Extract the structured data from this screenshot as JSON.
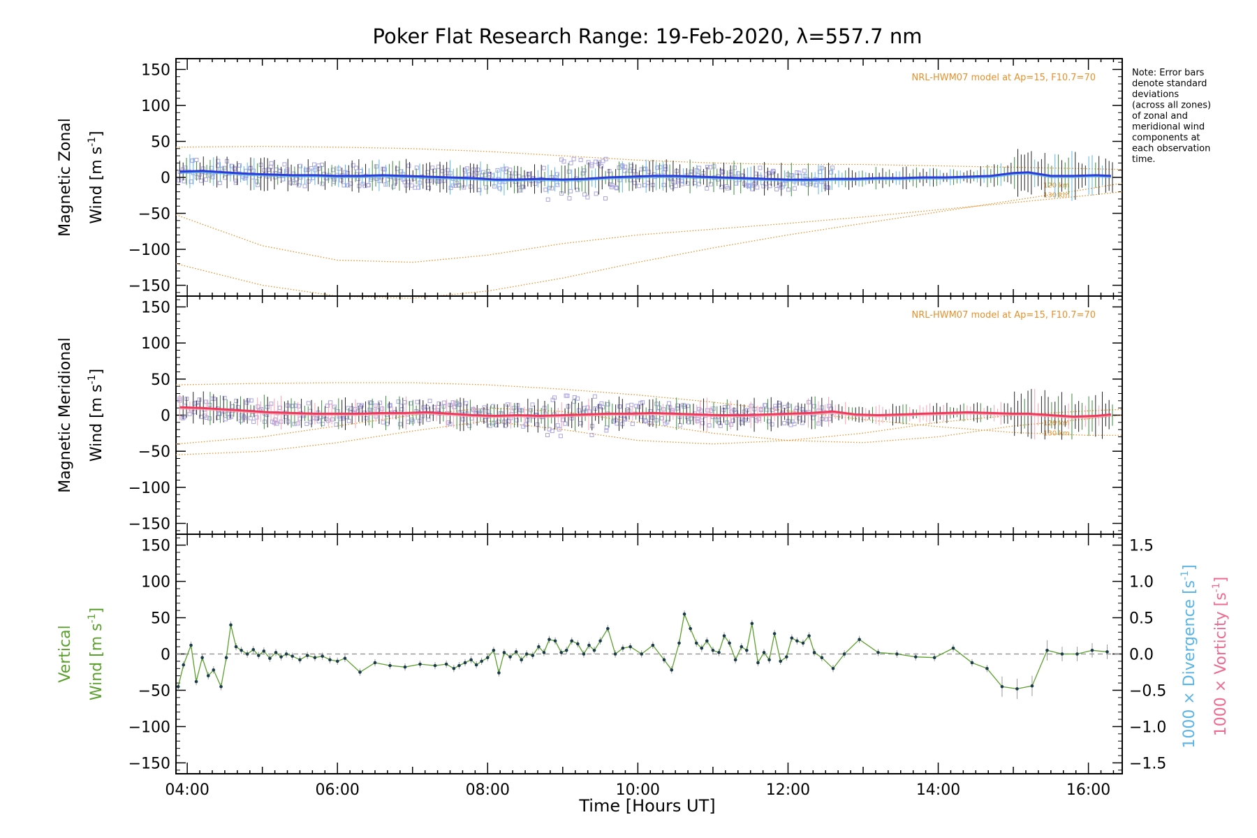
{
  "chart_data": {
    "type": "line",
    "title": "Poker Flat Research Range: 19-Feb-2020, λ=557.7 nm",
    "xlabel": "Time [Hours UT]",
    "x_ticks": [
      "04:00",
      "06:00",
      "08:00",
      "10:00",
      "12:00",
      "14:00",
      "16:00"
    ],
    "xlim_hours": [
      3.85,
      16.45
    ],
    "y_ticks": [
      150,
      100,
      50,
      0,
      -50,
      -100,
      -150
    ],
    "ylim": [
      -165,
      165
    ],
    "note": [
      "Note: Error bars",
      "denote standard",
      "deviations",
      "(across all zones)",
      "of zonal and",
      "meridional wind",
      "components at",
      "each observation",
      "time."
    ],
    "colors": {
      "zonal": "#2b3bd9",
      "zonal_light": "#5ab4e6",
      "meridional": "#f0395a",
      "meridional_light": "#f7a0b0",
      "vertical": "#5aa02c",
      "model": "#e8902a",
      "scatter": "#a9a3e0",
      "divergence_label": "#5ab4e6",
      "vorticity_label": "#f06a8f",
      "points": "#1a3a4a"
    },
    "panels": [
      {
        "name": "zonal",
        "ylabel_line1": "Magnetic Zonal",
        "ylabel_line2": "Wind [m s",
        "ylabel_sup": "-1",
        "ylabel_close": "]",
        "model_label": "NRL-HWM07 model at Ap=15, F10.7=70",
        "alt_labels": [
          "120 km",
          "130 km"
        ],
        "series": [
          {
            "name": "Zonal wind",
            "x": [
              3.9,
              4.2,
              4.5,
              4.8,
              5.1,
              5.4,
              5.7,
              6.0,
              6.3,
              6.6,
              6.9,
              7.2,
              7.5,
              7.8,
              8.1,
              8.4,
              8.7,
              9.0,
              9.3,
              9.6,
              9.9,
              10.2,
              10.5,
              10.8,
              11.1,
              11.4,
              11.7,
              12.0,
              12.3,
              12.6,
              12.9,
              13.2,
              13.5,
              13.8,
              14.1,
              14.4,
              14.7,
              15.0,
              15.2,
              15.5,
              15.8,
              16.1,
              16.3
            ],
            "y": [
              8,
              9,
              7,
              5,
              4,
              3,
              3,
              2,
              2,
              3,
              2,
              1,
              0,
              -1,
              -3,
              -3,
              -2,
              -3,
              -2,
              0,
              1,
              2,
              2,
              1,
              0,
              -1,
              -2,
              -3,
              -3,
              -2,
              -2,
              -1,
              -1,
              0,
              0,
              1,
              2,
              6,
              7,
              2,
              2,
              3,
              2
            ]
          }
        ],
        "model_curves": [
          {
            "x": [
              3.85,
              5,
              6,
              7,
              8,
              9,
              10,
              11,
              12,
              13,
              14,
              15,
              16,
              16.45
            ],
            "y": [
              42,
              43,
              42,
              40,
              36,
              30,
              24,
              20,
              18,
              18,
              16,
              14,
              12,
              11
            ]
          },
          {
            "x": [
              3.85,
              5,
              6,
              7,
              8,
              9,
              10,
              11,
              12,
              13,
              14,
              15,
              16,
              16.45
            ],
            "y": [
              -52,
              -95,
              -115,
              -118,
              -108,
              -92,
              -80,
              -72,
              -64,
              -55,
              -45,
              -35,
              -25,
              -20
            ]
          },
          {
            "x": [
              3.85,
              5,
              6,
              7,
              8,
              9,
              10,
              11,
              12,
              13,
              14,
              15,
              16,
              16.45
            ],
            "y": [
              -120,
              -150,
              -165,
              -168,
              -158,
              -140,
              -118,
              -98,
              -80,
              -64,
              -48,
              -32,
              -16,
              -8
            ]
          }
        ]
      },
      {
        "name": "meridional",
        "ylabel_line1": "Magnetic Meridional",
        "ylabel_line2": "Wind [m s",
        "ylabel_sup": "-1",
        "ylabel_close": "]",
        "model_label": "NRL-HWM07 model at Ap=15, F10.7=70",
        "alt_labels": [
          "120 km",
          "130 km"
        ],
        "series": [
          {
            "name": "Meridional wind",
            "x": [
              3.9,
              4.2,
              4.5,
              4.8,
              5.1,
              5.4,
              5.7,
              6.0,
              6.3,
              6.6,
              6.9,
              7.2,
              7.5,
              7.8,
              8.1,
              8.4,
              8.7,
              9.0,
              9.3,
              9.6,
              9.9,
              10.2,
              10.5,
              10.8,
              11.1,
              11.4,
              11.7,
              12.0,
              12.3,
              12.6,
              12.9,
              13.2,
              13.5,
              13.8,
              14.1,
              14.4,
              14.7,
              15.0,
              15.2,
              15.5,
              15.8,
              16.1,
              16.3
            ],
            "y": [
              11,
              10,
              8,
              6,
              4,
              3,
              2,
              2,
              2,
              3,
              3,
              4,
              2,
              0,
              -1,
              0,
              -1,
              0,
              1,
              2,
              2,
              3,
              2,
              1,
              0,
              0,
              1,
              2,
              3,
              5,
              1,
              0,
              1,
              2,
              3,
              4,
              3,
              2,
              2,
              0,
              -2,
              -1,
              1
            ]
          }
        ],
        "model_curves": [
          {
            "x": [
              3.85,
              5,
              6,
              7,
              8,
              9,
              10,
              11,
              12,
              13,
              14,
              15,
              16,
              16.45
            ],
            "y": [
              42,
              44,
              45,
              45,
              42,
              36,
              28,
              18,
              6,
              -6,
              -16,
              -24,
              -28,
              -28
            ]
          },
          {
            "x": [
              3.85,
              5,
              6,
              7,
              8,
              9,
              10,
              11,
              12,
              13,
              14,
              15,
              16,
              16.45
            ],
            "y": [
              -55,
              -50,
              -38,
              -22,
              -8,
              -20,
              -35,
              -40,
              -35,
              -25,
              -10,
              0,
              6,
              8
            ]
          },
          {
            "x": [
              3.85,
              5,
              6,
              7,
              8,
              9,
              10,
              11,
              12,
              13,
              14,
              15,
              16,
              16.45
            ],
            "y": [
              -40,
              -30,
              -15,
              0,
              10,
              5,
              -10,
              -25,
              -35,
              -38,
              -30,
              -15,
              -5,
              0
            ]
          }
        ]
      },
      {
        "name": "vertical",
        "ylabel_line1": "Vertical",
        "ylabel_line2": "Wind [m s",
        "ylabel_sup": "-1",
        "ylabel_close": "]",
        "right_ticks": [
          "1.5",
          "1.0",
          "0.5",
          "0.0",
          "−0.5",
          "−1.0",
          "−1.5"
        ],
        "right_label_div": "1000 × Divergence [s",
        "right_label_vor": "1000 × Vorticity [s",
        "right_label_sup": "-1",
        "right_label_close": "]",
        "series": [
          {
            "name": "Vertical wind",
            "x": [
              3.88,
              3.95,
              4.05,
              4.12,
              4.2,
              4.28,
              4.35,
              4.45,
              4.52,
              4.58,
              4.65,
              4.72,
              4.8,
              4.88,
              4.95,
              5.02,
              5.1,
              5.18,
              5.25,
              5.32,
              5.4,
              5.5,
              5.6,
              5.7,
              5.8,
              5.9,
              6.0,
              6.1,
              6.3,
              6.5,
              6.7,
              6.9,
              7.1,
              7.3,
              7.45,
              7.55,
              7.62,
              7.7,
              7.78,
              7.85,
              7.92,
              8.0,
              8.08,
              8.15,
              8.22,
              8.3,
              8.38,
              8.45,
              8.52,
              8.6,
              8.68,
              8.75,
              8.82,
              8.9,
              8.98,
              9.05,
              9.12,
              9.2,
              9.28,
              9.35,
              9.42,
              9.5,
              9.6,
              9.7,
              9.8,
              9.9,
              10.05,
              10.2,
              10.35,
              10.45,
              10.55,
              10.62,
              10.7,
              10.78,
              10.85,
              10.92,
              11.0,
              11.08,
              11.15,
              11.22,
              11.3,
              11.38,
              11.45,
              11.52,
              11.6,
              11.68,
              11.75,
              11.82,
              11.9,
              11.98,
              12.05,
              12.12,
              12.2,
              12.28,
              12.35,
              12.45,
              12.6,
              12.75,
              12.95,
              13.2,
              13.45,
              13.7,
              13.95,
              14.2,
              14.45,
              14.65,
              14.85,
              15.05,
              15.25,
              15.45,
              15.65,
              15.85,
              16.05,
              16.25
            ],
            "y": [
              -45,
              -15,
              12,
              -38,
              -5,
              -30,
              -22,
              -45,
              -5,
              40,
              10,
              5,
              0,
              6,
              -2,
              4,
              -6,
              2,
              -4,
              0,
              -3,
              -8,
              -2,
              -5,
              -3,
              -8,
              -10,
              -6,
              -25,
              -12,
              -16,
              -18,
              -14,
              -16,
              -14,
              -20,
              -16,
              -12,
              -8,
              -15,
              -10,
              -5,
              5,
              -26,
              2,
              -4,
              3,
              -8,
              0,
              -2,
              10,
              2,
              20,
              18,
              2,
              5,
              18,
              14,
              0,
              12,
              5,
              18,
              35,
              0,
              8,
              10,
              0,
              12,
              -8,
              -22,
              15,
              55,
              35,
              15,
              8,
              18,
              5,
              2,
              25,
              15,
              -8,
              10,
              5,
              42,
              -12,
              2,
              -8,
              28,
              -10,
              -4,
              22,
              18,
              15,
              25,
              2,
              -5,
              -20,
              0,
              20,
              2,
              0,
              -4,
              -5,
              8,
              -12,
              -20,
              -45,
              -48,
              -44,
              5,
              0,
              0,
              5,
              3
            ]
          }
        ]
      }
    ]
  }
}
